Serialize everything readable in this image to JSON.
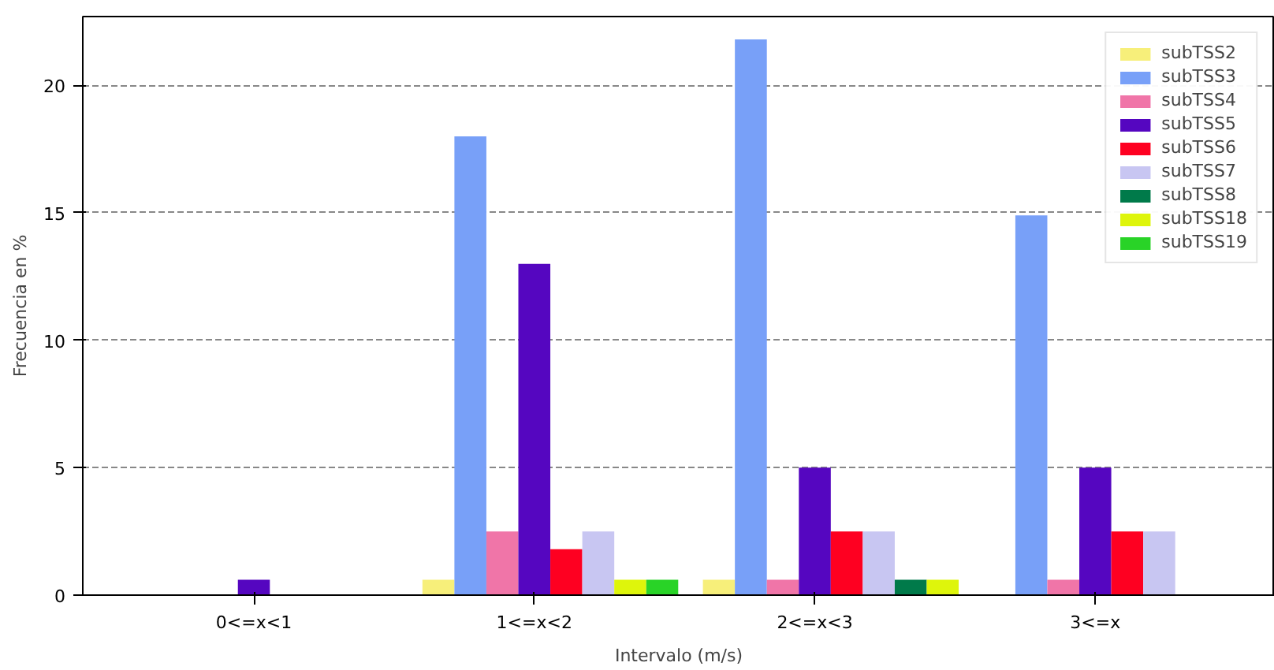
{
  "chart_data": {
    "type": "bar",
    "xlabel": "Intervalo (m/s)",
    "ylabel": "Frecuencia en %",
    "categories": [
      "0<=x<1",
      "1<=x<2",
      "2<=x<3",
      "3<=x"
    ],
    "ylim": [
      0,
      22.7
    ],
    "yticks": [
      0,
      5,
      10,
      15,
      20
    ],
    "grid": "y",
    "legend": "top right",
    "series": [
      {
        "name": "subTSS2",
        "color": "#f7ef7a",
        "values": [
          0,
          0.6,
          0.6,
          0
        ]
      },
      {
        "name": "subTSS3",
        "color": "#78a0f8",
        "values": [
          0,
          18.0,
          21.8,
          14.9
        ]
      },
      {
        "name": "subTSS4",
        "color": "#f075a8",
        "values": [
          0,
          2.5,
          0.6,
          0.6
        ]
      },
      {
        "name": "subTSS5",
        "color": "#5506c0",
        "values": [
          0.6,
          13.0,
          5.0,
          5.0
        ]
      },
      {
        "name": "subTSS6",
        "color": "#fe0021",
        "values": [
          0,
          1.8,
          2.5,
          2.5
        ]
      },
      {
        "name": "subTSS7",
        "color": "#c8c6f2",
        "values": [
          0,
          2.5,
          2.5,
          2.5
        ]
      },
      {
        "name": "subTSS8",
        "color": "#007a4a",
        "values": [
          0,
          0,
          0.6,
          0
        ]
      },
      {
        "name": "subTSS18",
        "color": "#def50b",
        "values": [
          0,
          0.6,
          0.6,
          0
        ]
      },
      {
        "name": "subTSS19",
        "color": "#29d327",
        "values": [
          0,
          0.6,
          0,
          0
        ]
      }
    ]
  }
}
